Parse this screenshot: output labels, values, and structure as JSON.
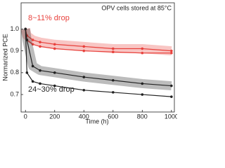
{
  "chart_data": {
    "type": "line",
    "annotations": [
      "OPV cells stored at 85°C",
      "8~11% drop",
      "24~30% drop"
    ],
    "annotation_colors": [
      "#222222",
      "#e8413c",
      "#222222"
    ],
    "xlabel": "Time (h)",
    "ylabel": "Normarized PCE",
    "x": [
      0,
      10,
      50,
      100,
      200,
      400,
      600,
      800,
      1000
    ],
    "series": [
      {
        "color": "#e8413c",
        "values": [
          1.0,
          0.97,
          0.95,
          0.94,
          0.93,
          0.92,
          0.91,
          0.91,
          0.9
        ]
      },
      {
        "color": "#e8413c",
        "values": [
          1.0,
          0.95,
          0.93,
          0.92,
          0.91,
          0.9,
          0.895,
          0.89,
          0.89
        ]
      },
      {
        "color": "#222222",
        "values": [
          1.0,
          0.95,
          0.83,
          0.81,
          0.8,
          0.78,
          0.765,
          0.75,
          0.74
        ]
      },
      {
        "color": "#222222",
        "values": [
          1.0,
          0.8,
          0.76,
          0.75,
          0.74,
          0.72,
          0.71,
          0.7,
          0.69
        ]
      }
    ],
    "xlim": [
      -30,
      1020
    ],
    "xticks": [
      0,
      200,
      400,
      600,
      800,
      1000
    ],
    "ylim": [
      0.62,
      1.12
    ],
    "yticks": [
      0.7,
      0.8,
      0.9,
      {
        "value": 1,
        "label": "1.0"
      }
    ]
  }
}
